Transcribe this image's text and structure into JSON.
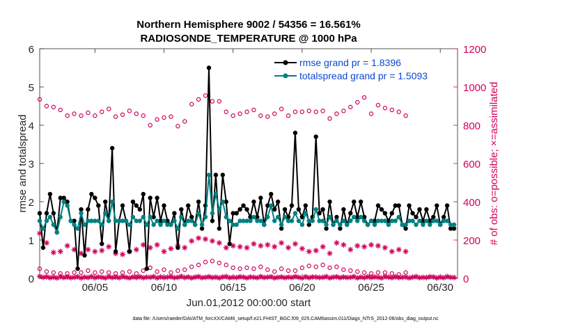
{
  "chart_data": {
    "type": "line",
    "title_line1": "Northern Hemisphere 9002 / 54356 = 16.561%",
    "title_line2": "RADIOSONDE_TEMPERATURE @ 1000 hPa",
    "xlabel": "Jun.01,2012 00:00:00 start",
    "ylabel_left": "rmse and totalspread",
    "ylabel_right": "# of obs: o=possible; ×=assimilated",
    "footnote": "data file: /Users/raeder/DAI/ATM_forcXX/CAM6_setup/f.e21.FHIST_BGC.f09_025.CAM6assim.011/Diags_NTrS_2012-06/obs_diag_output.nc",
    "xlim": [
      1.0,
      31.25
    ],
    "ylim_left": [
      0,
      6
    ],
    "ylim_right": [
      0,
      1200
    ],
    "x_ticks": [
      {
        "x": 5,
        "label": "06/05"
      },
      {
        "x": 10,
        "label": "06/10"
      },
      {
        "x": 15,
        "label": "06/15"
      },
      {
        "x": 20,
        "label": "06/20"
      },
      {
        "x": 25,
        "label": "06/25"
      },
      {
        "x": 30,
        "label": "06/30"
      }
    ],
    "y_ticks_left": [
      "0",
      "1",
      "2",
      "3",
      "4",
      "5",
      "6"
    ],
    "y_ticks_right": [
      "0",
      "200",
      "400",
      "600",
      "800",
      "1000",
      "1200"
    ],
    "legend": [
      {
        "name": "rmse grand pr = 1.8396",
        "color": "#000000"
      },
      {
        "name": "totalspread grand pr = 1.5093",
        "color": "#008080"
      }
    ],
    "legend_position": "top-right",
    "series": [
      {
        "name": "rmse",
        "axis": "left",
        "color": "#000000",
        "x_start": 1.0,
        "x_step": 0.25,
        "values": [
          1.7,
          0.8,
          1.7,
          2.2,
          1.7,
          1.2,
          2.1,
          2.1,
          2.0,
          1.5,
          1.5,
          0.25,
          1.8,
          0.6,
          1.8,
          2.2,
          2.1,
          1.9,
          0.9,
          2.0,
          1.5,
          3.4,
          0.7,
          1.5,
          1.9,
          1.5,
          0.7,
          2.0,
          1.9,
          1.8,
          2.2,
          0.25,
          2.1,
          1.6,
          2.1,
          1.5,
          1.9,
          1.5,
          1.4,
          1.7,
          0.8,
          1.8,
          1.4,
          1.9,
          1.6,
          1.4,
          2.0,
          1.3,
          1.9,
          5.5,
          1.5,
          2.7,
          1.3,
          2.7,
          2.0,
          0.9,
          1.7,
          1.7,
          1.8,
          1.9,
          1.8,
          1.6,
          2.0,
          1.6,
          2.1,
          1.4,
          1.9,
          2.2,
          1.8,
          2.0,
          1.3,
          1.8,
          1.6,
          1.9,
          3.8,
          1.8,
          1.6,
          1.9,
          1.4,
          1.6,
          3.7,
          1.7,
          1.8,
          1.3,
          2.0,
          1.4,
          1.6,
          1.3,
          1.8,
          1.4,
          1.7,
          2.0,
          1.6,
          2.0,
          1.6,
          1.4,
          1.5,
          1.5,
          1.9,
          1.8,
          1.7,
          1.5,
          1.7,
          1.9,
          1.9,
          1.4,
          1.3,
          1.9,
          1.7,
          1.6,
          1.8,
          1.5,
          1.8,
          1.5,
          1.6,
          1.9,
          1.4,
          1.6,
          1.9,
          1.3,
          1.3
        ]
      },
      {
        "name": "totalspread",
        "axis": "left",
        "color": "#008080",
        "x_start": 1.0,
        "x_step": 0.25,
        "values": [
          1.5,
          1.3,
          1.5,
          1.6,
          1.4,
          1.2,
          1.6,
          2.0,
          1.9,
          1.5,
          1.4,
          1.3,
          1.7,
          1.4,
          1.5,
          1.5,
          1.5,
          1.5,
          1.4,
          1.7,
          1.5,
          2.0,
          1.5,
          1.5,
          1.5,
          1.5,
          1.4,
          1.6,
          1.5,
          1.5,
          1.6,
          1.4,
          1.6,
          1.4,
          1.5,
          1.4,
          1.5,
          1.4,
          1.4,
          1.5,
          1.3,
          1.6,
          1.4,
          1.5,
          1.5,
          1.4,
          1.7,
          1.4,
          1.6,
          2.7,
          1.7,
          2.2,
          1.8,
          2.0,
          1.6,
          1.5,
          1.4,
          1.4,
          1.5,
          1.5,
          1.5,
          1.5,
          1.6,
          1.5,
          1.5,
          1.4,
          1.6,
          1.9,
          1.5,
          1.6,
          1.4,
          1.6,
          1.5,
          1.5,
          1.7,
          1.5,
          1.4,
          1.7,
          1.5,
          1.5,
          1.8,
          1.5,
          1.5,
          1.4,
          1.6,
          1.4,
          1.5,
          1.4,
          1.5,
          1.4,
          1.5,
          1.6,
          1.5,
          1.6,
          1.5,
          1.4,
          1.5,
          1.4,
          1.5,
          1.5,
          1.5,
          1.4,
          1.5,
          1.5,
          1.6,
          1.4,
          1.4,
          1.5,
          1.5,
          1.4,
          1.5,
          1.4,
          1.5,
          1.4,
          1.5,
          1.5,
          1.4,
          1.5,
          1.5,
          1.4,
          1.4
        ]
      },
      {
        "name": "obs possible (o)",
        "axis": "right",
        "color": "#d1005a",
        "marker": "circle",
        "x_start": 1.0,
        "x_step": 0.5,
        "values": [
          935,
          900,
          895,
          880,
          850,
          860,
          850,
          865,
          850,
          870,
          885,
          845,
          855,
          875,
          860,
          850,
          800,
          830,
          840,
          845,
          795,
          820,
          910,
          935,
          955,
          925,
          925,
          870,
          850,
          860,
          870,
          880,
          850,
          845,
          860,
          885,
          850,
          870,
          870,
          875,
          870,
          875,
          835,
          860,
          875,
          895,
          920,
          945,
          860,
          905,
          890,
          880,
          870,
          850
        ]
      },
      {
        "name": "obs possible (o), surface cluster",
        "axis": "right",
        "color": "#d1005a",
        "marker": "circle",
        "x_start": 1.0,
        "x_step": 0.5,
        "values": [
          50,
          35,
          30,
          25,
          25,
          30,
          30,
          40,
          30,
          35,
          30,
          25,
          30,
          35,
          25,
          40,
          55,
          35,
          45,
          30,
          40,
          45,
          60,
          70,
          85,
          90,
          80,
          70,
          55,
          50,
          55,
          50,
          60,
          45,
          35,
          50,
          40,
          40,
          55,
          65,
          60,
          70,
          55,
          60,
          45,
          40,
          35,
          30,
          25,
          30,
          30,
          25,
          20,
          30
        ]
      },
      {
        "name": "obs assimilated (*)",
        "axis": "right",
        "color": "#d1005a",
        "marker": "asterisk",
        "x_start": 1.0,
        "x_step": 0.5,
        "values": [
          235,
          185,
          135,
          140,
          170,
          150,
          130,
          150,
          140,
          145,
          165,
          130,
          125,
          140,
          150,
          175,
          160,
          175,
          140,
          155,
          170,
          160,
          195,
          210,
          205,
          195,
          185,
          160,
          170,
          165,
          160,
          180,
          170,
          175,
          165,
          185,
          160,
          180,
          155,
          140,
          145,
          165,
          130,
          185,
          175,
          150,
          170,
          165,
          175,
          170,
          160,
          140,
          150,
          140
        ]
      },
      {
        "name": "obs assimilated (*), surface cluster",
        "axis": "right",
        "color": "#d1005a",
        "marker": "asterisk",
        "x_start": 1.0,
        "x_step": 0.25,
        "values": [
          10,
          5,
          8,
          3,
          6,
          2,
          9,
          4,
          7,
          3,
          5,
          8,
          2,
          6,
          4,
          9,
          3,
          7,
          5,
          2,
          8,
          4,
          6,
          3,
          9,
          5,
          2,
          7,
          4,
          8,
          3,
          6,
          5,
          9,
          2,
          7,
          4,
          6,
          8,
          3,
          5,
          10,
          4,
          7,
          2,
          6,
          9,
          3,
          5,
          8,
          4,
          6,
          2,
          7,
          9,
          3,
          5,
          4,
          8,
          6,
          2,
          7,
          5,
          3,
          9,
          4,
          6,
          8,
          2,
          5,
          7,
          3,
          6,
          4,
          9,
          5,
          2,
          8,
          3,
          7,
          6,
          4,
          5,
          9,
          2,
          6,
          8,
          3,
          7,
          4,
          5,
          9,
          2,
          6,
          3,
          8,
          4,
          7,
          5,
          2,
          9,
          6,
          3,
          8,
          4,
          5,
          7,
          2,
          6,
          9,
          3,
          5,
          4,
          8,
          7,
          2,
          6,
          3,
          9,
          5,
          4
        ]
      }
    ]
  }
}
